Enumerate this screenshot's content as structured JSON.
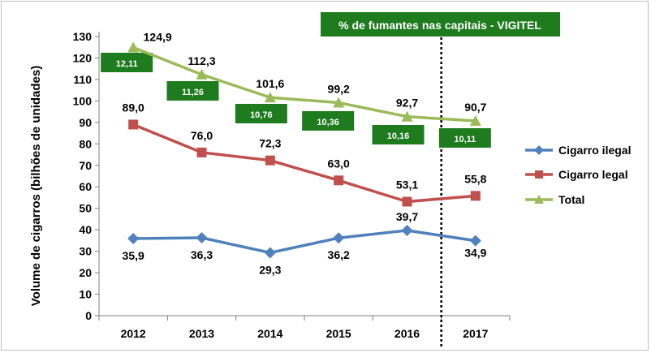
{
  "chart_data": {
    "type": "line",
    "ylabel": "Volume de cigarros (bilhões de unidades)",
    "xlabel": "",
    "categories": [
      "2012",
      "2013",
      "2014",
      "2015",
      "2016",
      "2017"
    ],
    "ylim": [
      0,
      130
    ],
    "yticks": [
      "0",
      "10",
      "20",
      "30",
      "40",
      "50",
      "60",
      "70",
      "80",
      "90",
      "100",
      "110",
      "120",
      "130"
    ],
    "grid": false,
    "legend_position": "right",
    "series": [
      {
        "name": "Cigarro ilegal",
        "color": "#4f81bd",
        "marker": "diamond",
        "values": [
          35.9,
          36.3,
          29.3,
          36.2,
          39.7,
          34.9
        ],
        "labels": [
          "35,9",
          "36,3",
          "29,3",
          "36,2",
          "39,7",
          "34,9"
        ]
      },
      {
        "name": "Cigarro legal",
        "color": "#c0504d",
        "marker": "square",
        "values": [
          89.0,
          76.0,
          72.3,
          63.0,
          53.1,
          55.8
        ],
        "labels": [
          "89,0",
          "76,0",
          "72,3",
          "63,0",
          "53,1",
          "55,8"
        ]
      },
      {
        "name": "Total",
        "color": "#9bbb59",
        "marker": "triangle",
        "values": [
          124.9,
          112.3,
          101.6,
          99.2,
          92.7,
          90.7
        ],
        "labels": [
          "124,9",
          "112,3",
          "101,6",
          "99,2",
          "92,7",
          "90,7"
        ]
      }
    ],
    "vigitel": {
      "title": "% de fumantes nas capitais - VIGITEL",
      "color": "#1e7b1e",
      "values": [
        "12,11",
        "11,26",
        "10,76",
        "10,36",
        "10,16",
        "10,11"
      ]
    },
    "divider_after_category": "2016"
  }
}
